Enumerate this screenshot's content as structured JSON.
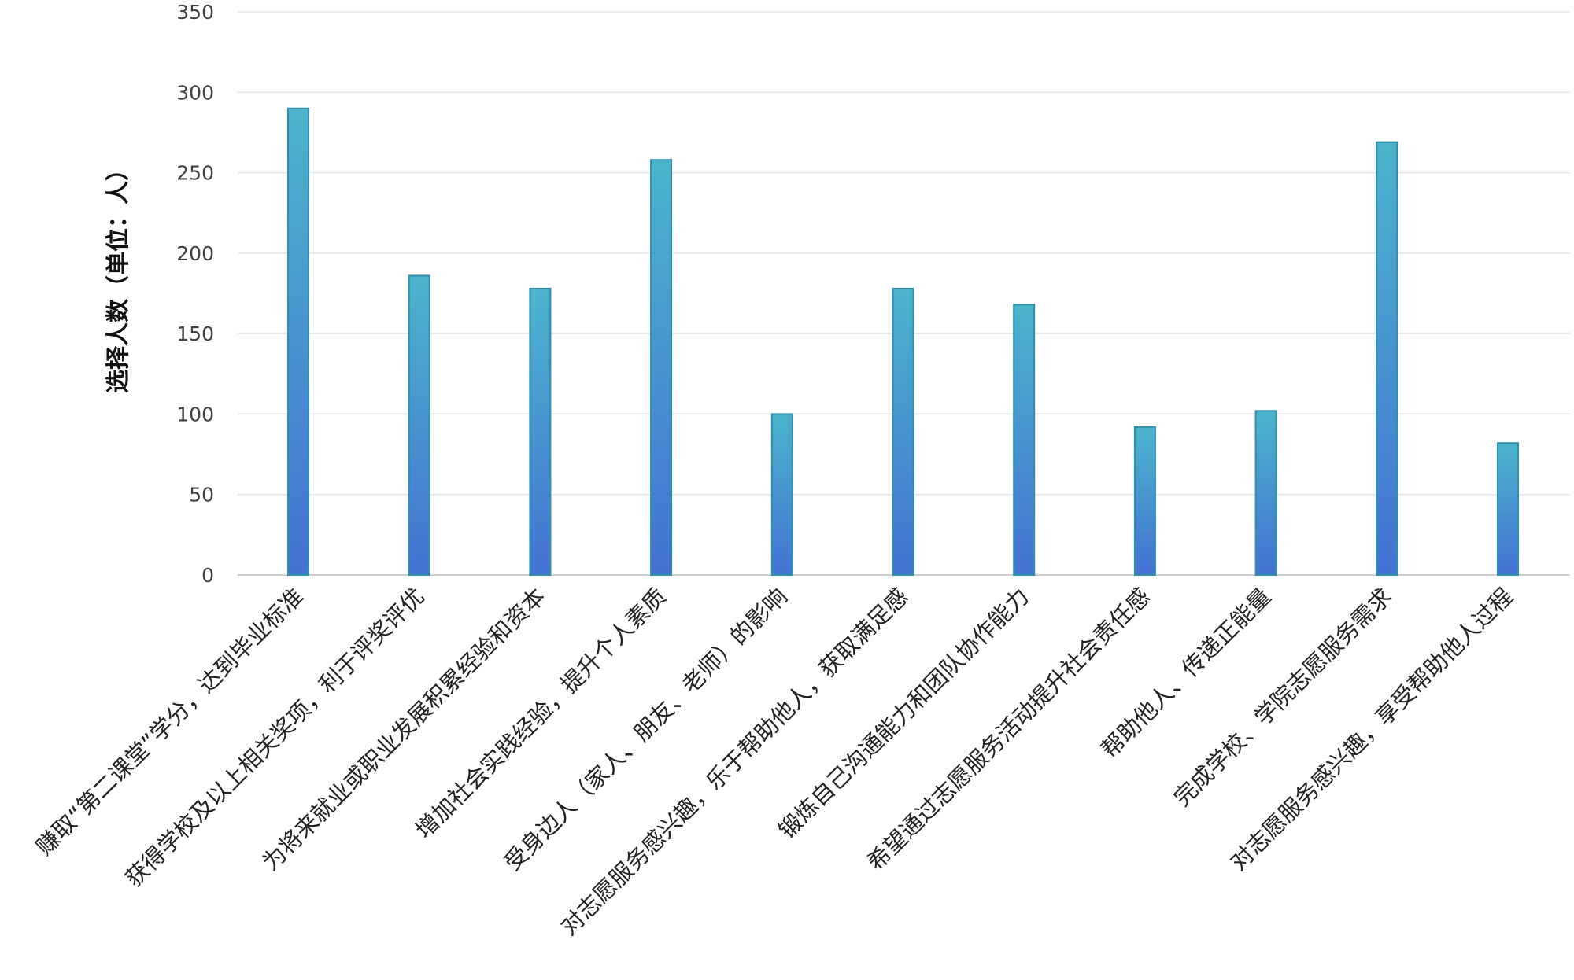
{
  "chart_data": {
    "type": "bar",
    "ylabel": "选择人数（单位：人）",
    "ylim": [
      0,
      350
    ],
    "yticks": [
      0,
      50,
      100,
      150,
      200,
      250,
      300,
      350
    ],
    "grid": true,
    "categories": [
      "赚取“第二课堂”学分，达到毕业标准",
      "获得学校及以上相关奖项，利于评奖评优",
      "为将来就业或职业发展积累经验和资本",
      "增加社会实践经验，提升个人素质",
      "受身边人（家人、朋友、老师）的影响",
      "对志愿服务感兴趣，乐于帮助他人，获取满足感",
      "锻炼自己沟通能力和团队协作能力",
      "希望通过志愿服务活动提升社会责任感",
      "帮助他人、传递正能量",
      "完成学校、学院志愿服务需求",
      "对志愿服务感兴趣，享受帮助他人过程"
    ],
    "values": [
      290,
      186,
      178,
      258,
      100,
      178,
      168,
      92,
      102,
      269,
      82
    ],
    "colors": {
      "bar_top": "#4bb4cc",
      "bar_bottom": "#4472d4",
      "bar_stroke": "#2f8fa8"
    }
  }
}
